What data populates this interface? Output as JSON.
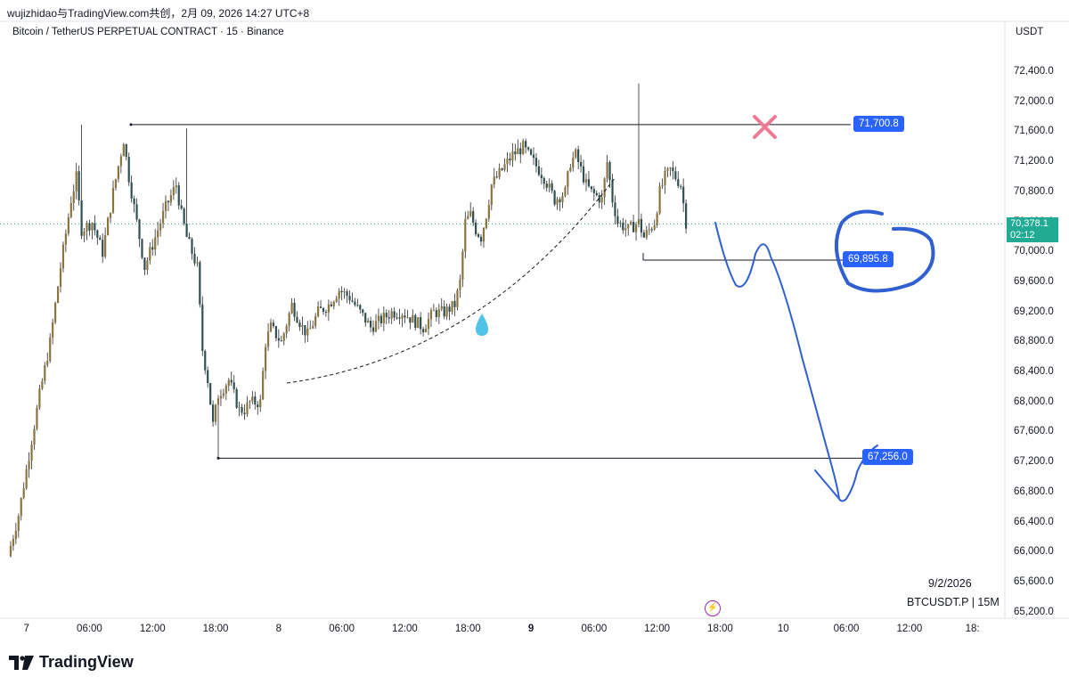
{
  "header": {
    "watermark_line": "wujizhidao与TradingView.com共创，2月 09, 2026 14:27 UTC+8",
    "symbol_title": "Bitcoin / TetherUS PERPETUAL CONTRACT · 15 · Binance",
    "currency": "USDT"
  },
  "footer": {
    "date_stamp": "9/2/2026",
    "ticker_info": "BTCUSDT.P | 15M",
    "brand": "TradingView"
  },
  "last_price": {
    "value": "70,378.1",
    "countdown": "02:12"
  },
  "colors": {
    "up": "#8a7440",
    "down": "#2f4f52",
    "drawing": "#2f5fd0",
    "tag": "#2962ff",
    "cross": "#ef7a94",
    "drop": "#4fc3e8",
    "last": "#22ab94"
  },
  "chart_data": {
    "type": "candlestick",
    "y_axis": {
      "range": [
        65000,
        72750
      ],
      "ticks": [
        "72,400.0",
        "72,000.0",
        "71,600.0",
        "71,200.0",
        "70,800.0",
        "70,400.0",
        "70,000.0",
        "69,600.0",
        "69,200.0",
        "68,800.0",
        "68,400.0",
        "68,000.0",
        "67,600.0",
        "67,200.0",
        "66,800.0",
        "66,400.0",
        "66,000.0",
        "65,600.0",
        "65,200.0"
      ],
      "tick_values": [
        72400,
        72000,
        71600,
        71200,
        70800,
        70400,
        70000,
        69600,
        69200,
        68800,
        68400,
        68000,
        67600,
        67200,
        66800,
        66400,
        66000,
        65600,
        65200
      ]
    },
    "x_axis": {
      "ticks": [
        {
          "label": "7",
          "idx": 7
        },
        {
          "label": "06:00",
          "idx": 31
        },
        {
          "label": "12:00",
          "idx": 55
        },
        {
          "label": "18:00",
          "idx": 79
        },
        {
          "label": "8",
          "idx": 103
        },
        {
          "label": "06:00",
          "idx": 127
        },
        {
          "label": "12:00",
          "idx": 151
        },
        {
          "label": "18:00",
          "idx": 175
        },
        {
          "label": "9",
          "idx": 199,
          "bold": true
        },
        {
          "label": "06:00",
          "idx": 223
        },
        {
          "label": "12:00",
          "idx": 247
        },
        {
          "label": "18:00",
          "idx": 271
        },
        {
          "label": "10",
          "idx": 295
        },
        {
          "label": "06:00",
          "idx": 319
        },
        {
          "label": "12:00",
          "idx": 343
        },
        {
          "label": "18:",
          "idx": 367
        }
      ]
    },
    "price_path": [
      [
        0,
        65950
      ],
      [
        4,
        66500
      ],
      [
        8,
        67300
      ],
      [
        12,
        68100
      ],
      [
        16,
        68800
      ],
      [
        20,
        69800
      ],
      [
        24,
        70700
      ],
      [
        26,
        71000
      ],
      [
        28,
        70300
      ],
      [
        32,
        70400
      ],
      [
        36,
        70000
      ],
      [
        40,
        70800
      ],
      [
        44,
        71500
      ],
      [
        46,
        71000
      ],
      [
        48,
        70600
      ],
      [
        52,
        69800
      ],
      [
        56,
        70200
      ],
      [
        60,
        70600
      ],
      [
        64,
        70900
      ],
      [
        66,
        70500
      ],
      [
        68,
        70200
      ],
      [
        70,
        70000
      ],
      [
        72,
        69800
      ],
      [
        74,
        68700
      ],
      [
        76,
        68300
      ],
      [
        78,
        67700
      ],
      [
        80,
        68100
      ],
      [
        84,
        68300
      ],
      [
        88,
        67900
      ],
      [
        90,
        67900
      ],
      [
        92,
        68000
      ],
      [
        96,
        68000
      ],
      [
        98,
        68800
      ],
      [
        100,
        69000
      ],
      [
        104,
        68800
      ],
      [
        108,
        69300
      ],
      [
        112,
        69000
      ],
      [
        114,
        68900
      ],
      [
        118,
        69200
      ],
      [
        122,
        69300
      ],
      [
        126,
        69500
      ],
      [
        130,
        69400
      ],
      [
        134,
        69200
      ],
      [
        138,
        69000
      ],
      [
        142,
        69100
      ],
      [
        146,
        69200
      ],
      [
        150,
        69200
      ],
      [
        154,
        69100
      ],
      [
        158,
        69000
      ],
      [
        162,
        69200
      ],
      [
        166,
        69200
      ],
      [
        170,
        69300
      ],
      [
        172,
        69600
      ],
      [
        174,
        70400
      ],
      [
        176,
        70500
      ],
      [
        178,
        70300
      ],
      [
        180,
        70200
      ],
      [
        182,
        70500
      ],
      [
        184,
        70900
      ],
      [
        188,
        71100
      ],
      [
        192,
        71300
      ],
      [
        196,
        71400
      ],
      [
        200,
        71200
      ],
      [
        204,
        71000
      ],
      [
        208,
        70700
      ],
      [
        212,
        70800
      ],
      [
        214,
        71200
      ],
      [
        216,
        71300
      ],
      [
        220,
        70900
      ],
      [
        222,
        70800
      ],
      [
        226,
        70700
      ],
      [
        228,
        71200
      ],
      [
        230,
        70700
      ],
      [
        232,
        70400
      ],
      [
        236,
        70300
      ],
      [
        240,
        70400
      ],
      [
        242,
        70200
      ],
      [
        246,
        70400
      ],
      [
        248,
        70800
      ],
      [
        250,
        71000
      ],
      [
        252,
        71100
      ],
      [
        256,
        70900
      ],
      [
        258,
        70400
      ]
    ],
    "levels": [
      {
        "label": "71,700.8",
        "value": 71700.8
      },
      {
        "label": "69,895.8",
        "value": 69895.8
      },
      {
        "label": "67,256.0",
        "value": 67256.0
      }
    ],
    "last_price": 70378.1
  }
}
